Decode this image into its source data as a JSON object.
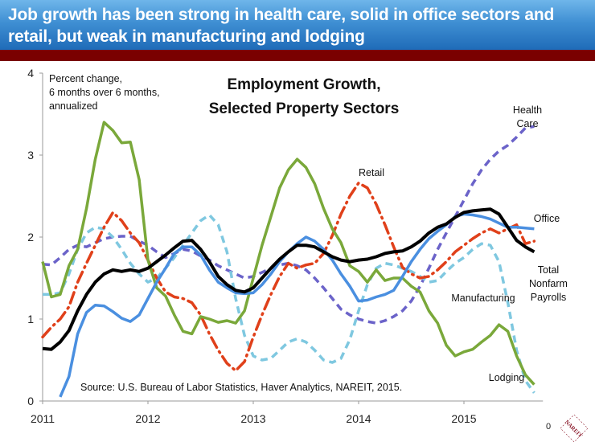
{
  "banner": {
    "title": "Job growth has been strong in health care, solid in office sectors and retail, but weak in manufacturing and lodging"
  },
  "page_number": "0",
  "logo": {
    "text": "NAREIT",
    "color": "#8b1a2b"
  },
  "chart_data": {
    "type": "line",
    "title": "Employment Growth, Selected Property Sectors",
    "title_lines": [
      "Employment Growth,",
      "Selected Property Sectors"
    ],
    "note_lines": [
      "Percent change,",
      "6 months over 6 months,",
      "annualized"
    ],
    "source": "Source: U.S. Bureau of Labor Statistics, Haver Analytics, NAREIT, 2015.",
    "xlabel": "",
    "ylabel": "",
    "ylim": [
      0,
      4
    ],
    "yticks": [
      0,
      1,
      2,
      3,
      4
    ],
    "xlim": [
      2011,
      2015.75
    ],
    "xticks": [
      2011,
      2012,
      2013,
      2014,
      2015
    ],
    "grid": false,
    "legend": "inline-labels",
    "x": [
      2011.0,
      2011.083,
      2011.167,
      2011.25,
      2011.333,
      2011.417,
      2011.5,
      2011.583,
      2011.667,
      2011.75,
      2011.833,
      2011.917,
      2012.0,
      2012.083,
      2012.167,
      2012.25,
      2012.333,
      2012.417,
      2012.5,
      2012.583,
      2012.667,
      2012.75,
      2012.833,
      2012.917,
      2013.0,
      2013.083,
      2013.167,
      2013.25,
      2013.333,
      2013.417,
      2013.5,
      2013.583,
      2013.667,
      2013.75,
      2013.833,
      2013.917,
      2014.0,
      2014.083,
      2014.167,
      2014.25,
      2014.333,
      2014.417,
      2014.5,
      2014.583,
      2014.667,
      2014.75,
      2014.833,
      2014.917,
      2015.0,
      2015.083,
      2015.167,
      2015.25,
      2015.333,
      2015.417,
      2015.5,
      2015.583,
      2015.667
    ],
    "series": [
      {
        "name": "Health Care",
        "label_lines": [
          "Health",
          "Care"
        ],
        "color": "#6b63c9",
        "style": "dashed",
        "values": [
          1.67,
          1.66,
          1.75,
          1.85,
          1.9,
          1.88,
          1.93,
          1.98,
          2.0,
          2.01,
          2.01,
          1.95,
          1.9,
          1.82,
          1.75,
          1.8,
          1.85,
          1.83,
          1.77,
          1.72,
          1.65,
          1.6,
          1.55,
          1.5,
          1.52,
          1.57,
          1.62,
          1.66,
          1.68,
          1.65,
          1.6,
          1.5,
          1.38,
          1.25,
          1.12,
          1.05,
          1.0,
          0.97,
          0.95,
          0.98,
          1.03,
          1.1,
          1.22,
          1.4,
          1.62,
          1.85,
          2.05,
          2.25,
          2.45,
          2.65,
          2.82,
          2.95,
          3.05,
          3.12,
          3.22,
          3.33,
          3.35
        ]
      },
      {
        "name": "Total Nonfarm Payrolls",
        "label_lines": [
          "Total",
          "Nonfarm",
          "Payrolls"
        ],
        "color": "#000000",
        "style": "solid",
        "values": [
          0.64,
          0.63,
          0.72,
          0.86,
          1.1,
          1.3,
          1.45,
          1.55,
          1.6,
          1.58,
          1.6,
          1.58,
          1.62,
          1.7,
          1.78,
          1.87,
          1.95,
          1.96,
          1.85,
          1.7,
          1.52,
          1.42,
          1.35,
          1.33,
          1.38,
          1.5,
          1.62,
          1.73,
          1.82,
          1.9,
          1.9,
          1.88,
          1.82,
          1.76,
          1.72,
          1.7,
          1.72,
          1.73,
          1.76,
          1.8,
          1.82,
          1.83,
          1.88,
          1.95,
          2.05,
          2.12,
          2.16,
          2.24,
          2.3,
          2.32,
          2.33,
          2.34,
          2.28,
          2.12,
          1.96,
          1.88,
          1.82
        ]
      },
      {
        "name": "Office",
        "label_lines": [
          "Office"
        ],
        "color": "#4a8fe0",
        "style": "solid",
        "values": [
          -0.3,
          -0.2,
          0.05,
          0.3,
          0.82,
          1.08,
          1.17,
          1.16,
          1.09,
          1.01,
          0.97,
          1.05,
          1.25,
          1.45,
          1.62,
          1.8,
          1.88,
          1.88,
          1.78,
          1.6,
          1.45,
          1.38,
          1.32,
          1.31,
          1.32,
          1.42,
          1.55,
          1.7,
          1.82,
          1.92,
          2.0,
          1.95,
          1.85,
          1.72,
          1.55,
          1.4,
          1.22,
          1.23,
          1.27,
          1.3,
          1.35,
          1.52,
          1.7,
          1.85,
          1.98,
          2.07,
          2.15,
          2.25,
          2.28,
          2.27,
          2.25,
          2.22,
          2.17,
          2.12,
          2.12,
          2.11,
          2.1
        ]
      },
      {
        "name": "Retail",
        "label_lines": [
          "Retail"
        ],
        "color": "#e0401a",
        "style": "dashdot",
        "values": [
          0.78,
          0.9,
          1.0,
          1.15,
          1.45,
          1.68,
          1.9,
          2.12,
          2.3,
          2.2,
          2.05,
          1.93,
          1.72,
          1.5,
          1.33,
          1.27,
          1.25,
          1.2,
          1.05,
          0.82,
          0.62,
          0.46,
          0.37,
          0.48,
          0.78,
          1.05,
          1.3,
          1.52,
          1.68,
          1.62,
          1.66,
          1.68,
          1.8,
          2.02,
          2.28,
          2.5,
          2.66,
          2.6,
          2.4,
          2.15,
          1.88,
          1.63,
          1.55,
          1.5,
          1.52,
          1.6,
          1.7,
          1.82,
          1.9,
          1.98,
          2.05,
          2.1,
          2.05,
          2.1,
          2.15,
          1.92,
          1.95
        ]
      },
      {
        "name": "Manufacturing",
        "label_lines": [
          "Manufacturing"
        ],
        "color": "#7fc8e0",
        "style": "dashed",
        "values": [
          1.3,
          1.3,
          1.32,
          1.55,
          1.85,
          2.05,
          2.12,
          2.1,
          2.0,
          1.85,
          1.68,
          1.55,
          1.45,
          1.5,
          1.62,
          1.75,
          1.9,
          2.05,
          2.2,
          2.27,
          2.15,
          1.82,
          1.25,
          0.8,
          0.55,
          0.5,
          0.52,
          0.62,
          0.72,
          0.76,
          0.72,
          0.62,
          0.5,
          0.47,
          0.52,
          0.75,
          1.1,
          1.42,
          1.62,
          1.68,
          1.66,
          1.62,
          1.58,
          1.52,
          1.45,
          1.47,
          1.58,
          1.68,
          1.75,
          1.85,
          1.92,
          1.9,
          1.7,
          1.2,
          0.62,
          0.25,
          0.1
        ]
      },
      {
        "name": "Lodging",
        "label_lines": [
          "Lodging"
        ],
        "color": "#7aa83a",
        "style": "solid",
        "values": [
          1.7,
          1.27,
          1.3,
          1.65,
          1.85,
          2.35,
          2.95,
          3.4,
          3.3,
          3.15,
          3.16,
          2.7,
          1.72,
          1.38,
          1.28,
          1.05,
          0.85,
          0.82,
          1.03,
          1.0,
          0.96,
          0.98,
          0.95,
          1.1,
          1.5,
          1.9,
          2.25,
          2.6,
          2.82,
          2.95,
          2.85,
          2.65,
          2.35,
          2.1,
          1.93,
          1.65,
          1.58,
          1.45,
          1.6,
          1.47,
          1.5,
          1.5,
          1.4,
          1.33,
          1.1,
          0.95,
          0.68,
          0.55,
          0.6,
          0.63,
          0.72,
          0.8,
          0.93,
          0.85,
          0.55,
          0.32,
          0.2
        ]
      }
    ]
  }
}
